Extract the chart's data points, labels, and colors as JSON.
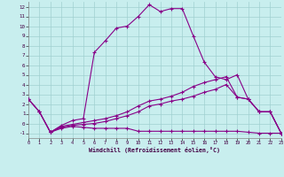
{
  "xlabel": "Windchill (Refroidissement éolien,°C)",
  "background_color": "#c8eeee",
  "grid_color": "#a0d0d0",
  "line_color": "#880088",
  "xlim": [
    0,
    23
  ],
  "ylim": [
    -1.5,
    12.5
  ],
  "xticks": [
    0,
    1,
    2,
    3,
    4,
    5,
    6,
    7,
    8,
    9,
    10,
    11,
    12,
    13,
    14,
    15,
    16,
    17,
    18,
    19,
    20,
    21,
    22,
    23
  ],
  "yticks": [
    -1,
    0,
    1,
    2,
    3,
    4,
    5,
    6,
    7,
    8,
    9,
    10,
    11,
    12
  ],
  "line1_x": [
    0,
    1,
    2,
    3,
    4,
    5,
    6,
    7,
    8,
    9,
    10,
    11,
    12,
    13,
    14,
    15,
    16,
    17,
    18,
    19,
    20,
    21,
    22,
    23
  ],
  "line1_y": [
    2.5,
    1.2,
    -0.9,
    -0.2,
    0.3,
    0.5,
    7.3,
    8.5,
    9.8,
    10.0,
    11.0,
    12.2,
    11.5,
    11.8,
    11.8,
    9.0,
    6.3,
    4.8,
    4.5,
    5.0,
    2.5,
    1.2,
    1.2,
    -1.0
  ],
  "line2_x": [
    0,
    1,
    2,
    3,
    4,
    5,
    6,
    7,
    8,
    9,
    10,
    11,
    12,
    13,
    14,
    15,
    16,
    17,
    18,
    19,
    20,
    21,
    22,
    23
  ],
  "line2_y": [
    2.5,
    1.2,
    -0.9,
    -0.3,
    -0.1,
    0.1,
    0.3,
    0.5,
    0.8,
    1.2,
    1.8,
    2.3,
    2.5,
    2.8,
    3.2,
    3.8,
    4.2,
    4.5,
    4.8,
    2.7,
    2.5,
    1.2,
    1.2,
    -1.0
  ],
  "line3_x": [
    0,
    1,
    2,
    3,
    4,
    5,
    6,
    7,
    8,
    9,
    10,
    11,
    12,
    13,
    14,
    15,
    16,
    17,
    18,
    19,
    20,
    21,
    22,
    23
  ],
  "line3_y": [
    2.5,
    1.2,
    -0.9,
    -0.5,
    -0.3,
    -0.4,
    -0.5,
    -0.5,
    -0.5,
    -0.5,
    -0.8,
    -0.8,
    -0.8,
    -0.8,
    -0.8,
    -0.8,
    -0.8,
    -0.8,
    -0.8,
    -0.8,
    -0.9,
    -1.0,
    -1.0,
    -1.0
  ],
  "line4_x": [
    2,
    3,
    4,
    5,
    6,
    7,
    8,
    9,
    10,
    11,
    12,
    13,
    14,
    15,
    16,
    17,
    18,
    19,
    20,
    21,
    22,
    23
  ],
  "line4_y": [
    -0.9,
    -0.4,
    -0.2,
    -0.1,
    0.0,
    0.2,
    0.5,
    0.8,
    1.2,
    1.8,
    2.0,
    2.3,
    2.5,
    2.8,
    3.2,
    3.5,
    4.0,
    2.7,
    2.5,
    1.2,
    1.2,
    -1.0
  ]
}
